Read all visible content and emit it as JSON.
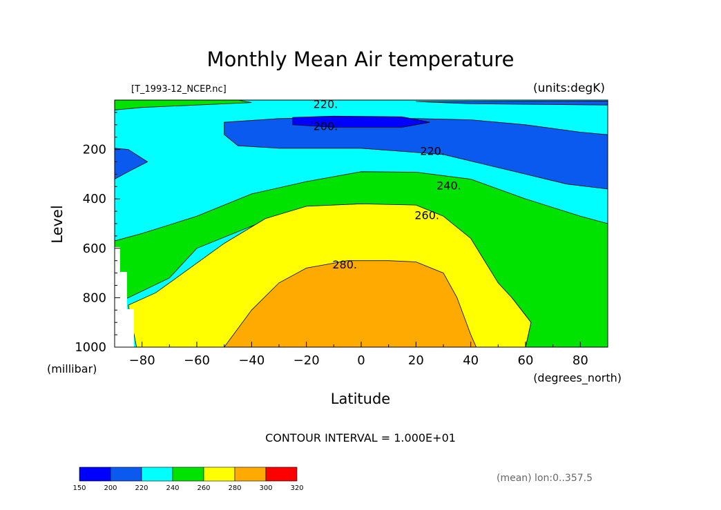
{
  "chart_data": {
    "type": "heatmap",
    "title": "Monthly Mean Air temperature",
    "source_file": "[T_1993-12_NCEP.nc]",
    "units_label": "(units:degK)",
    "xlabel": "Latitude",
    "x_units": "(degrees_north)",
    "ylabel": "Level",
    "y_units": "(millibar)",
    "xlim": [
      -90,
      90
    ],
    "ylim": [
      1000,
      0
    ],
    "x_ticks": [
      -80,
      -60,
      -40,
      -20,
      0,
      20,
      40,
      60,
      80
    ],
    "y_ticks": [
      200,
      400,
      600,
      800,
      1000
    ],
    "x_tick_labels": [
      "−80",
      "−60",
      "−40",
      "−20",
      "0",
      "20",
      "40",
      "60",
      "80"
    ],
    "y_tick_labels": [
      "200",
      "400",
      "600",
      "800",
      "1000"
    ],
    "contour_interval_text": "CONTOUR INTERVAL = 1.000E+01",
    "mean_note": "(mean) lon:0..357.5",
    "contour_labels": [
      {
        "text": "220.",
        "x": -13,
        "y": 15
      },
      {
        "text": "200.",
        "x": -13,
        "y": 105
      },
      {
        "text": "220.",
        "x": 26,
        "y": 205
      },
      {
        "text": "240.",
        "x": 32,
        "y": 345
      },
      {
        "text": "260.",
        "x": 24,
        "y": 465
      },
      {
        "text": "280.",
        "x": -6,
        "y": 665
      }
    ],
    "regions": [
      {
        "value_range": [
          200,
          220
        ],
        "color": "#0a5aef",
        "points": [
          [
            -50,
            90
          ],
          [
            -30,
            75
          ],
          [
            -10,
            72
          ],
          [
            20,
            75
          ],
          [
            40,
            80
          ],
          [
            60,
            100
          ],
          [
            80,
            130
          ],
          [
            90,
            140
          ],
          [
            90,
            360
          ],
          [
            75,
            340
          ],
          [
            60,
            300
          ],
          [
            45,
            260
          ],
          [
            30,
            220
          ],
          [
            0,
            195
          ],
          [
            -30,
            195
          ],
          [
            -45,
            185
          ],
          [
            -50,
            140
          ]
        ]
      },
      {
        "value_range": [
          200,
          220
        ],
        "color": "#0a5aef",
        "points": [
          [
            -90,
            195
          ],
          [
            -85,
            200
          ],
          [
            -78,
            250
          ],
          [
            -85,
            290
          ],
          [
            -90,
            320
          ]
        ]
      },
      {
        "value_range": [
          200,
          220
        ],
        "color": "#0a5aef",
        "points": [
          [
            20,
            6
          ],
          [
            90,
            4
          ],
          [
            90,
            20
          ],
          [
            40,
            15
          ]
        ]
      },
      {
        "value_range": [
          150,
          200
        ],
        "color": "#0000ff",
        "points": [
          [
            -25,
            70
          ],
          [
            -10,
            65
          ],
          [
            15,
            68
          ],
          [
            25,
            90
          ],
          [
            15,
            110
          ],
          [
            -10,
            110
          ],
          [
            -25,
            100
          ]
        ]
      },
      {
        "value_range": [
          240,
          260
        ],
        "color": "#00e200",
        "points": [
          [
            -90,
            570
          ],
          [
            -80,
            540
          ],
          [
            -60,
            470
          ],
          [
            -40,
            380
          ],
          [
            -20,
            330
          ],
          [
            0,
            290
          ],
          [
            20,
            292
          ],
          [
            40,
            320
          ],
          [
            60,
            400
          ],
          [
            80,
            470
          ],
          [
            90,
            500
          ],
          [
            90,
            1000
          ],
          [
            60,
            1000
          ],
          [
            62,
            900
          ],
          [
            55,
            800
          ],
          [
            40,
            680
          ],
          [
            20,
            470
          ],
          [
            0,
            420
          ],
          [
            -20,
            430
          ],
          [
            -40,
            510
          ],
          [
            -60,
            600
          ],
          [
            -70,
            720
          ],
          [
            -85,
            800
          ],
          [
            -90,
            820
          ]
        ]
      },
      {
        "value_range": [
          240,
          260
        ],
        "color": "#00e200",
        "points": [
          [
            -90,
            0
          ],
          [
            -45,
            0
          ],
          [
            -40,
            10
          ],
          [
            -80,
            30
          ],
          [
            -90,
            40
          ]
        ]
      },
      {
        "value_range": [
          260,
          280
        ],
        "color": "#ffff00",
        "points": [
          [
            -85,
            830
          ],
          [
            -75,
            780
          ],
          [
            -65,
            700
          ],
          [
            -50,
            580
          ],
          [
            -35,
            480
          ],
          [
            -20,
            430
          ],
          [
            0,
            420
          ],
          [
            20,
            425
          ],
          [
            30,
            470
          ],
          [
            40,
            560
          ],
          [
            50,
            740
          ],
          [
            55,
            800
          ],
          [
            62,
            900
          ],
          [
            60,
            1000
          ],
          [
            -82,
            1000
          ]
        ]
      },
      {
        "value_range": [
          280,
          300
        ],
        "color": "#ffaa00",
        "points": [
          [
            -50,
            1000
          ],
          [
            -40,
            850
          ],
          [
            -30,
            740
          ],
          [
            -20,
            680
          ],
          [
            -5,
            650
          ],
          [
            10,
            650
          ],
          [
            20,
            655
          ],
          [
            30,
            700
          ],
          [
            35,
            800
          ],
          [
            40,
            950
          ],
          [
            42,
            1000
          ]
        ]
      }
    ],
    "colorbar": {
      "values": [
        150,
        200,
        220,
        240,
        260,
        280,
        300,
        320
      ],
      "colors": [
        "#0000ff",
        "#0a5aef",
        "#00ffff",
        "#00e200",
        "#ffff00",
        "#ffaa00",
        "#ff0000"
      ]
    }
  }
}
